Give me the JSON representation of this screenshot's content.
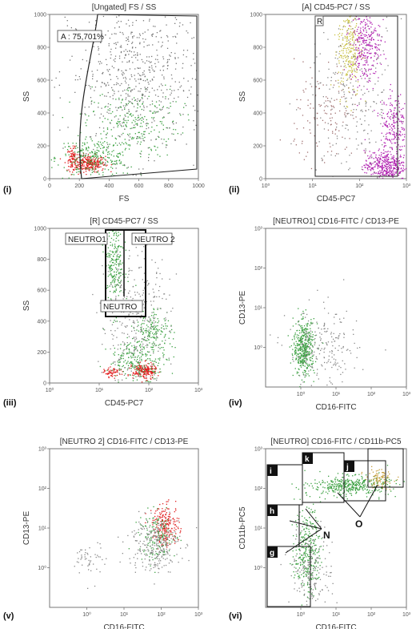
{
  "chart_data": [
    {
      "id": "i",
      "panel_label": "(i)",
      "type": "scatter",
      "title": "[Ungated] FS / SS",
      "xlabel": "FS",
      "ylabel": "SS",
      "xscale": "linear",
      "yscale": "linear",
      "xlim": [
        0,
        1000
      ],
      "ylim": [
        0,
        1000
      ],
      "x_ticks": [
        "0",
        "200",
        "400",
        "600",
        "800",
        "1000"
      ],
      "y_ticks": [
        "0",
        "200",
        "400",
        "600",
        "800",
        "1000"
      ],
      "gate_label": "A : 75,701%",
      "clusters": [
        {
          "color": "#e02020",
          "cx": 260,
          "cy": 95,
          "sx": 55,
          "sy": 25,
          "n": 260
        },
        {
          "color": "#e02020",
          "cx": 150,
          "cy": 120,
          "sx": 18,
          "sy": 35,
          "n": 80
        },
        {
          "color": "#3aa040",
          "cx": 300,
          "cy": 130,
          "sx": 130,
          "sy": 60,
          "n": 260
        },
        {
          "color": "#3aa040",
          "cx": 550,
          "cy": 350,
          "sx": 160,
          "sy": 110,
          "n": 240
        },
        {
          "color": "#777777",
          "cx": 580,
          "cy": 620,
          "sx": 230,
          "sy": 250,
          "n": 700
        }
      ]
    },
    {
      "id": "ii",
      "panel_label": "(ii)",
      "type": "scatter",
      "title": "[A] CD45-PC7 / SS",
      "xlabel": "CD45-PC7",
      "ylabel": "SS",
      "xscale": "log",
      "yscale": "linear",
      "xlim": [
        1,
        1000
      ],
      "ylim": [
        0,
        1000
      ],
      "x_ticks": [
        "10⁰",
        "10¹",
        "10²",
        "10³"
      ],
      "y_ticks": [
        "0",
        "200",
        "400",
        "600",
        "800",
        "1000"
      ],
      "gate_label": "R",
      "clusters": [
        {
          "color": "#c8c040",
          "cx": 60,
          "cy": 800,
          "sx": 0.12,
          "sy": 150,
          "n": 260
        },
        {
          "color": "#b020b0",
          "cx": 130,
          "cy": 840,
          "sx": 0.16,
          "sy": 130,
          "n": 300
        },
        {
          "color": "#b020b0",
          "cx": 350,
          "cy": 80,
          "sx": 0.22,
          "sy": 45,
          "n": 380
        },
        {
          "color": "#b020b0",
          "cx": 520,
          "cy": 330,
          "sx": 0.14,
          "sy": 100,
          "n": 200
        },
        {
          "color": "#a07070",
          "cx": 20,
          "cy": 380,
          "sx": 0.35,
          "sy": 160,
          "n": 140
        },
        {
          "color": "#888888",
          "cx": 80,
          "cy": 500,
          "sx": 0.5,
          "sy": 250,
          "n": 260
        }
      ]
    },
    {
      "id": "iii",
      "panel_label": "(iii)",
      "type": "scatter",
      "title": "[R] CD45-PC7 / SS",
      "xlabel": "CD45-PC7",
      "ylabel": "SS",
      "xscale": "log",
      "yscale": "linear",
      "xlim": [
        1,
        1000
      ],
      "ylim": [
        0,
        1000
      ],
      "x_ticks": [
        "10⁰",
        "10¹",
        "10²",
        "10³"
      ],
      "y_ticks": [
        "0",
        "200",
        "400",
        "600",
        "800",
        "1000"
      ],
      "gate_labels": [
        "NEUTRO1",
        "NEUTRO 2",
        "NEUTRO"
      ],
      "clusters": [
        {
          "color": "#3aa040",
          "cx": 20,
          "cy": 780,
          "sx": 0.1,
          "sy": 160,
          "n": 240
        },
        {
          "color": "#e02020",
          "cx": 80,
          "cy": 80,
          "sx": 0.12,
          "sy": 25,
          "n": 200
        },
        {
          "color": "#e02020",
          "cx": 18,
          "cy": 70,
          "sx": 0.08,
          "sy": 15,
          "n": 60
        },
        {
          "color": "#3aa040",
          "cx": 60,
          "cy": 150,
          "sx": 0.3,
          "sy": 60,
          "n": 220
        },
        {
          "color": "#3aa040",
          "cx": 120,
          "cy": 350,
          "sx": 0.18,
          "sy": 70,
          "n": 150
        },
        {
          "color": "#888888",
          "cx": 50,
          "cy": 400,
          "sx": 0.35,
          "sy": 230,
          "n": 360
        }
      ]
    },
    {
      "id": "iv",
      "panel_label": "(iv)",
      "type": "scatter",
      "title": "[NEUTRO1] CD16-FITC / CD13-PE",
      "xlabel": "CD16-FITC",
      "ylabel": "CD13-PE",
      "xscale": "log",
      "yscale": "log",
      "xlim": [
        0.1,
        1000
      ],
      "ylim": [
        0.1,
        1000
      ],
      "x_ticks": [
        "10⁰",
        "10¹",
        "10²",
        "10³"
      ],
      "y_ticks": [
        "10⁰",
        "10¹",
        "10²",
        "10³"
      ],
      "clusters": [
        {
          "color": "#3aa040",
          "cx": 1.2,
          "cy": 1.0,
          "sx": 0.15,
          "sy": 0.35,
          "n": 420
        },
        {
          "color": "#888888",
          "cx": 4,
          "cy": 0.8,
          "sx": 0.5,
          "sy": 0.55,
          "n": 220
        }
      ]
    },
    {
      "id": "v",
      "panel_label": "(v)",
      "type": "scatter",
      "title": "[NEUTRO 2] CD16-FITC / CD13-PE",
      "xlabel": "CD16-FITC",
      "ylabel": "CD13-PE",
      "xscale": "log",
      "yscale": "log",
      "xlim": [
        0.1,
        1000
      ],
      "ylim": [
        0.1,
        1000
      ],
      "x_ticks": [
        "10⁰",
        "10¹",
        "10²",
        "10³"
      ],
      "y_ticks": [
        "10⁰",
        "10¹",
        "10²",
        "10³"
      ],
      "clusters": [
        {
          "color": "#e02020",
          "cx": 130,
          "cy": 12,
          "sx": 0.18,
          "sy": 0.25,
          "n": 220
        },
        {
          "color": "#3aa040",
          "cx": 80,
          "cy": 6,
          "sx": 0.25,
          "sy": 0.3,
          "n": 140
        },
        {
          "color": "#888888",
          "cx": 60,
          "cy": 4,
          "sx": 0.35,
          "sy": 0.35,
          "n": 260
        },
        {
          "color": "#888888",
          "cx": 1.2,
          "cy": 1.5,
          "sx": 0.2,
          "sy": 0.25,
          "n": 50
        }
      ]
    },
    {
      "id": "vi",
      "panel_label": "(vi)",
      "type": "scatter",
      "title": "[NEUTRO] CD16-FITC / CD11b-PC5",
      "xlabel": "CD16-FITC",
      "ylabel": "CD11b-PC5",
      "xscale": "log",
      "yscale": "log",
      "xlim": [
        0.1,
        1000
      ],
      "ylim": [
        0.1,
        1000
      ],
      "x_ticks": [
        "10⁰",
        "10¹",
        "10²",
        "10³"
      ],
      "y_ticks": [
        "10⁰",
        "10¹",
        "10²",
        "10³"
      ],
      "gate_labels": [
        "i",
        "k",
        "j",
        "h",
        "g"
      ],
      "annotations": [
        "N",
        "O"
      ],
      "clusters": [
        {
          "color": "#3aa040",
          "cx": 25,
          "cy": 120,
          "sx": 0.55,
          "sy": 0.12,
          "n": 380
        },
        {
          "color": "#c8a040",
          "cx": 160,
          "cy": 180,
          "sx": 0.2,
          "sy": 0.12,
          "n": 90
        },
        {
          "color": "#3aa040",
          "cx": 1.5,
          "cy": 3,
          "sx": 0.18,
          "sy": 0.55,
          "n": 300
        },
        {
          "color": "#888888",
          "cx": 2,
          "cy": 1,
          "sx": 0.3,
          "sy": 0.5,
          "n": 180
        }
      ]
    }
  ]
}
